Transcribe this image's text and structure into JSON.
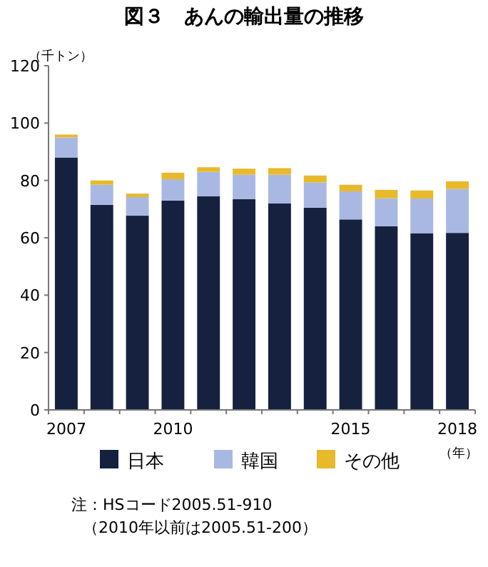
{
  "chart_data": {
    "type": "bar",
    "title": "図３　あんの輸出量の推移",
    "ylabel": "（千トン）",
    "xlabel": "（年）",
    "categories": [
      "2007",
      null,
      null,
      "2010",
      null,
      null,
      null,
      null,
      "2015",
      null,
      null,
      "2018"
    ],
    "stacked": true,
    "ylim": [
      0,
      120
    ],
    "yticks": [
      0,
      20,
      40,
      60,
      80,
      100,
      120
    ],
    "grid": false,
    "legend": "bottom",
    "series": [
      {
        "name": "日本",
        "color": "#15213f",
        "values": [
          88,
          71.5,
          67.7,
          73,
          74.5,
          73.5,
          72,
          70.5,
          66.4,
          64,
          61.6,
          61.7
        ]
      },
      {
        "name": "韓国",
        "color": "#a9b8e3",
        "values": [
          7,
          7,
          6.5,
          7.4,
          8.5,
          8.5,
          10,
          8.8,
          9.8,
          9.8,
          12.1,
          15.3
        ]
      },
      {
        "name": "その他",
        "color": "#e8b92b",
        "values": [
          1,
          1.5,
          1.2,
          2.3,
          1.6,
          2.1,
          2.3,
          2.4,
          2.3,
          2.9,
          2.8,
          2.7
        ]
      }
    ],
    "annotations": [
      "注：HSコード2005.51-910",
      "（2010年以前は2005.51-200）"
    ]
  }
}
